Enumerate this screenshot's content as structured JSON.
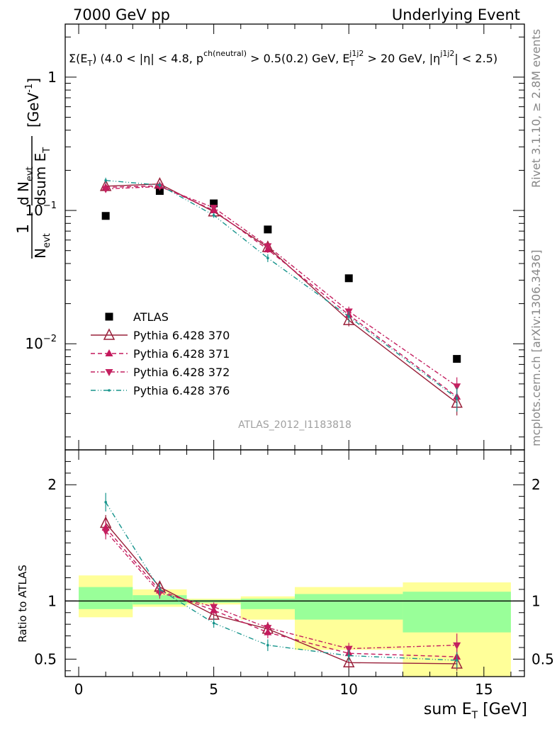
{
  "header": {
    "left": "7000 GeV pp",
    "right": "Underlying Event",
    "selection": "Σ(E_T) (4.0 < |η| < 4.8, p^ch(neutral) > 0.5(0.2) GeV, E_T^j1j2 > 20 GeV, |η^j1j2| < 2.5)"
  },
  "side_labels": {
    "rivet": "Rivet 3.1.10, ≥ 2.8M events",
    "mcplots": "mcplots.cern.ch [arXiv:1306.3436]"
  },
  "watermark": "ATLAS_2012_I1183818",
  "y_label_top": "1/N_evt dN_evt/dsum E_T [GeV^-1]",
  "y_label_ratio": "Ratio to ATLAS",
  "x_label": "sum E_T [GeV]",
  "colors": {
    "data": "#000000",
    "p370": "#99203a",
    "p371": "#c4185c",
    "p372": "#c42060",
    "p376": "#16948c",
    "band_inner": "#99ff99",
    "band_outer": "#ffff99"
  },
  "legend": [
    {
      "key": "data",
      "label": "ATLAS"
    },
    {
      "key": "p370",
      "label": "Pythia 6.428 370"
    },
    {
      "key": "p371",
      "label": "Pythia 6.428 371"
    },
    {
      "key": "p372",
      "label": "Pythia 6.428 372"
    },
    {
      "key": "p376",
      "label": "Pythia 6.428 376"
    }
  ],
  "chart_data": [
    {
      "type": "scatter",
      "panel": "main",
      "y_scale": "log",
      "xlim": [
        -0.5,
        16.5
      ],
      "ylim": [
        0.0016,
        2.5
      ],
      "y_ticks": [
        {
          "v": 0.01,
          "label": "10^-2"
        },
        {
          "v": 0.1,
          "label": "10^-1"
        },
        {
          "v": 1,
          "label": "1"
        }
      ],
      "x": [
        1,
        3,
        5,
        7,
        10,
        14
      ],
      "x_bins": [
        [
          0,
          2
        ],
        [
          2,
          4
        ],
        [
          4,
          6
        ],
        [
          6,
          8
        ],
        [
          8,
          12
        ],
        [
          12,
          16
        ]
      ],
      "series": [
        {
          "key": "data",
          "name": "ATLAS",
          "values": [
            0.091,
            0.14,
            0.113,
            0.072,
            0.031,
            0.0077
          ]
        },
        {
          "key": "p370",
          "name": "Pythia 6.428 370",
          "values": [
            0.152,
            0.158,
            0.098,
            0.053,
            0.015,
            0.0036
          ],
          "err": [
            0.008,
            0.006,
            0.004,
            0.003,
            0.0015,
            0.0007
          ]
        },
        {
          "key": "p371",
          "name": "Pythia 6.428 371",
          "values": [
            0.149,
            0.153,
            0.1,
            0.051,
            0.0165,
            0.004
          ],
          "err": [
            0.008,
            0.006,
            0.004,
            0.003,
            0.0015,
            0.0008
          ]
        },
        {
          "key": "p372",
          "name": "Pythia 6.428 372",
          "values": [
            0.145,
            0.151,
            0.105,
            0.054,
            0.0175,
            0.0048
          ],
          "err": [
            0.008,
            0.006,
            0.004,
            0.003,
            0.0015,
            0.0008
          ]
        },
        {
          "key": "p376",
          "name": "Pythia 6.428 376",
          "values": [
            0.168,
            0.155,
            0.092,
            0.044,
            0.016,
            0.0039
          ],
          "err": [
            0.008,
            0.006,
            0.004,
            0.003,
            0.0015,
            0.0008
          ]
        }
      ]
    },
    {
      "type": "scatter",
      "panel": "ratio",
      "ylabel": "Ratio to ATLAS",
      "xlabel": "sum E_T [GeV]",
      "xlim": [
        -0.5,
        16.5
      ],
      "ylim": [
        0.35,
        2.3
      ],
      "y_ticks": [
        0.5,
        1,
        2
      ],
      "x_ticks": [
        0,
        5,
        10,
        15
      ],
      "x": [
        1,
        3,
        5,
        7,
        10,
        14
      ],
      "bands": [
        {
          "x0": 0,
          "x1": 2,
          "inner": [
            0.93,
            1.12
          ],
          "outer": [
            0.86,
            1.22
          ]
        },
        {
          "x0": 2,
          "x1": 4,
          "inner": [
            0.97,
            1.05
          ],
          "outer": [
            0.95,
            1.1
          ]
        },
        {
          "x0": 4,
          "x1": 6,
          "inner": [
            0.985,
            1.01
          ],
          "outer": [
            0.97,
            1.02
          ]
        },
        {
          "x0": 6,
          "x1": 8,
          "inner": [
            0.93,
            1.02
          ],
          "outer": [
            0.84,
            1.04
          ]
        },
        {
          "x0": 8,
          "x1": 12,
          "inner": [
            0.84,
            1.06
          ],
          "outer": [
            0.58,
            1.12
          ]
        },
        {
          "x0": 12,
          "x1": 16,
          "inner": [
            0.73,
            1.08
          ],
          "outer": [
            0.3,
            1.16
          ]
        }
      ],
      "series": [
        {
          "key": "p370",
          "name": "Pythia 6.428 370",
          "values": [
            1.67,
            1.12,
            0.88,
            0.76,
            0.47,
            0.46
          ],
          "err": [
            0.07,
            0.05,
            0.04,
            0.05,
            0.05,
            0.06
          ]
        },
        {
          "key": "p371",
          "name": "Pythia 6.428 371",
          "values": [
            1.63,
            1.09,
            0.92,
            0.73,
            0.55,
            0.52
          ],
          "err": [
            0.07,
            0.05,
            0.04,
            0.05,
            0.05,
            0.08
          ]
        },
        {
          "key": "p372",
          "name": "Pythia 6.428 372",
          "values": [
            1.6,
            1.07,
            0.95,
            0.77,
            0.59,
            0.62
          ],
          "err": [
            0.07,
            0.05,
            0.04,
            0.05,
            0.05,
            0.1
          ]
        },
        {
          "key": "p376",
          "name": "Pythia 6.428 376",
          "values": [
            1.85,
            1.1,
            0.81,
            0.62,
            0.53,
            0.49
          ],
          "err": [
            0.08,
            0.05,
            0.04,
            0.05,
            0.05,
            0.07
          ]
        }
      ]
    }
  ]
}
